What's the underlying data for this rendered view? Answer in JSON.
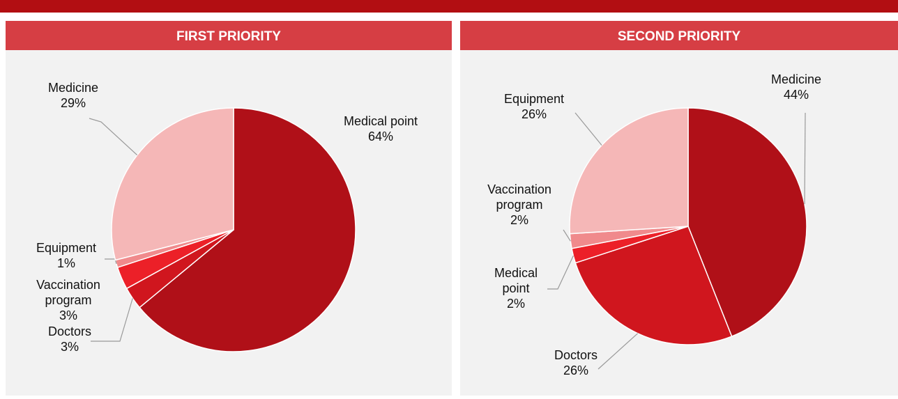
{
  "chart_data": [
    {
      "type": "pie",
      "title": "FIRST PRIORITY",
      "categories": [
        "Medical point",
        "Doctors",
        "Vaccination program",
        "Equipment",
        "Medicine"
      ],
      "values": [
        64,
        3,
        3,
        1,
        29
      ],
      "value_labels": [
        "64%",
        "3%",
        "3%",
        "1%",
        "29%"
      ],
      "colors": [
        "#b01018",
        "#d0161e",
        "#ec2028",
        "#f08a8c",
        "#f5b7b7"
      ]
    },
    {
      "type": "pie",
      "title": "SECOND PRIORITY",
      "categories": [
        "Medicine",
        "Doctors",
        "Medical point",
        "Vaccination program",
        "Equipment"
      ],
      "values": [
        44,
        26,
        2,
        2,
        26
      ],
      "value_labels": [
        "44%",
        "26%",
        "2%",
        "2%",
        "26%"
      ],
      "colors": [
        "#b01018",
        "#d0161e",
        "#ec2028",
        "#f08a8c",
        "#f5b7b7"
      ]
    }
  ]
}
